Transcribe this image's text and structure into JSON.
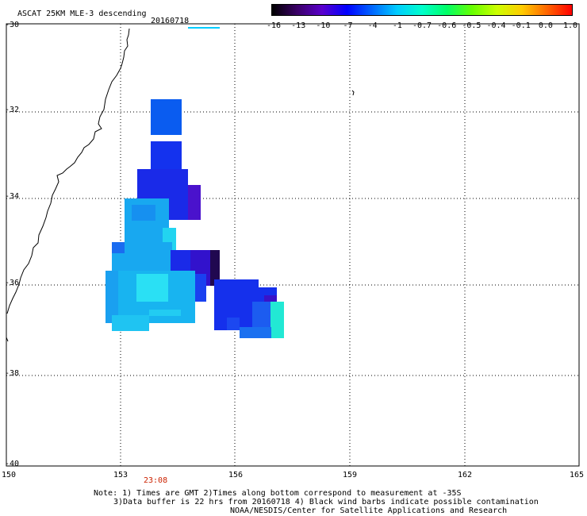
{
  "header": {
    "title": "ASCAT 25KM MLE-3 descending",
    "date": "20160718"
  },
  "colorbar": {
    "labels": [
      "-16",
      "-13",
      "-10",
      "-7",
      "-4",
      "-1",
      "-0.7",
      "-0.6",
      "-0.5",
      "-0.4",
      "-0.1",
      "0.0",
      "1.0"
    ],
    "colors": [
      "#000000",
      "#3a0066",
      "#5a00cc",
      "#0000ff",
      "#0066ff",
      "#00ccff",
      "#00ffcc",
      "#00ff66",
      "#66ff00",
      "#ccff00",
      "#ffcc00",
      "#ff6600",
      "#ff0000"
    ]
  },
  "axes": {
    "lon_labels": [
      "150",
      "153",
      "156",
      "159",
      "162",
      "165"
    ],
    "lat_labels": [
      "-30",
      "-32",
      "-34",
      "-36",
      "-38",
      "-40"
    ]
  },
  "pass_time": "23:08",
  "notes": {
    "line1": "Note: 1) Times are GMT 2)Times along bottom correspond to measurement at -35S",
    "line2": "3)Data buffer is 22 hrs from 20160718 4) Black wind barbs indicate possible contamination",
    "line3": "NOAA/NESDIS/Center for Satellite Applications and Research"
  }
}
